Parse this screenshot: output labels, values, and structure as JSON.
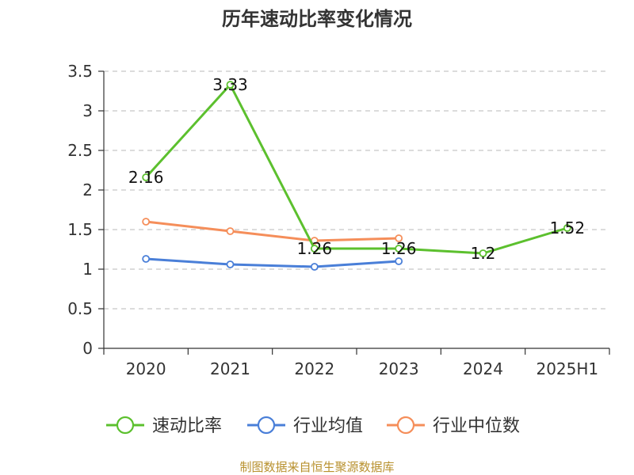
{
  "chart_data": {
    "type": "line",
    "title": "历年速动比率变化情况",
    "categories": [
      "2020",
      "2021",
      "2022",
      "2023",
      "2024",
      "2025H1"
    ],
    "ylim": [
      0,
      3.5
    ],
    "yticks": [
      "0",
      "0.5",
      "1",
      "1.5",
      "2",
      "2.5",
      "3",
      "3.5"
    ],
    "grid": true,
    "legend_position": "bottom",
    "series": [
      {
        "name": "速动比率",
        "color": "#5cc02e",
        "values": [
          2.16,
          3.33,
          1.26,
          1.26,
          1.2,
          1.52
        ],
        "labels": [
          "2.16",
          "3.33",
          "1.26",
          "1.26",
          "1.2",
          "1.52"
        ]
      },
      {
        "name": "行业均值",
        "color": "#4a7fd8",
        "values": [
          1.13,
          1.06,
          1.03,
          1.1,
          null,
          null
        ]
      },
      {
        "name": "行业中位数",
        "color": "#f58e5a",
        "values": [
          1.6,
          1.48,
          1.36,
          1.39,
          null,
          null
        ]
      }
    ]
  },
  "source": "制图数据来自恒生聚源数据库"
}
